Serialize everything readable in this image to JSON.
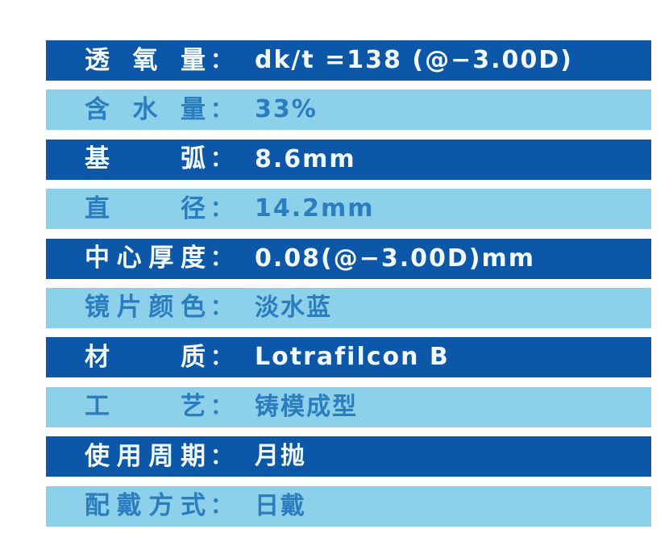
{
  "colors": {
    "dark_row_bg": "#0d57a8",
    "light_row_bg": "#8dd0ea",
    "dark_row_text": "#f2f9fd",
    "light_row_text": "#2b7dc0",
    "page_bg": "#ffffff"
  },
  "table": {
    "colon": "：",
    "rows": [
      {
        "label": "透氧量",
        "value": "dk/t =138 (@−3.00D)",
        "variant": "dark"
      },
      {
        "label": "含水量",
        "value": "33%",
        "variant": "light"
      },
      {
        "label": "基弧",
        "value": "8.6mm",
        "variant": "dark"
      },
      {
        "label": "直径",
        "value": "14.2mm",
        "variant": "light"
      },
      {
        "label": "中心厚度",
        "value": "0.08(@−3.00D)mm",
        "variant": "dark"
      },
      {
        "label": "镜片颜色",
        "value": "淡水蓝",
        "variant": "light"
      },
      {
        "label": "材质",
        "value": "Lotrafilcon B",
        "variant": "dark"
      },
      {
        "label": "工艺",
        "value": "铸模成型",
        "variant": "light"
      },
      {
        "label": "使用周期",
        "value": "月抛",
        "variant": "dark"
      },
      {
        "label": "配戴方式",
        "value": "日戴",
        "variant": "light"
      }
    ]
  }
}
